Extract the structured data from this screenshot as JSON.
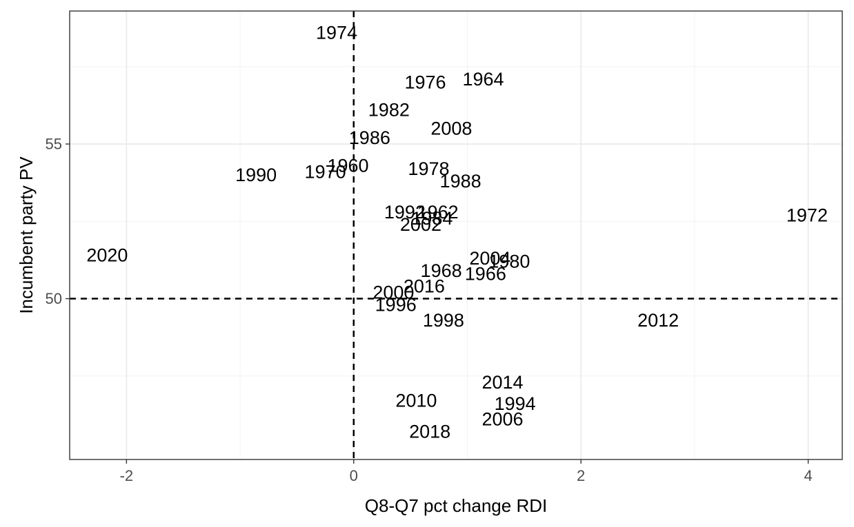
{
  "chart_data": {
    "type": "scatter",
    "xlabel": "Q8-Q7 pct change RDI",
    "ylabel": "Incumbent party PV",
    "xlim": [
      -2.5,
      4.3
    ],
    "ylim": [
      44.8,
      59.3
    ],
    "x_ticks": [
      -2,
      0,
      2,
      4
    ],
    "x_tick_labels": [
      "-2",
      "0",
      "2",
      "4"
    ],
    "y_ticks": [
      50,
      55
    ],
    "y_tick_labels": [
      "50",
      "55"
    ],
    "x_minor_ticks": [
      -1,
      1,
      3
    ],
    "y_minor_ticks": [
      47.5,
      52.5,
      57.5
    ],
    "grid": true,
    "reference_lines": {
      "x": 0,
      "y": 50
    },
    "points": [
      {
        "label": "1974",
        "x": -0.15,
        "y": 58.6
      },
      {
        "label": "1976",
        "x": 0.63,
        "y": 57.0
      },
      {
        "label": "1964",
        "x": 1.14,
        "y": 57.1
      },
      {
        "label": "1982",
        "x": 0.31,
        "y": 56.1
      },
      {
        "label": "2008",
        "x": 0.86,
        "y": 55.5
      },
      {
        "label": "1986",
        "x": 0.14,
        "y": 55.2
      },
      {
        "label": "1960",
        "x": -0.05,
        "y": 54.3
      },
      {
        "label": "1970",
        "x": -0.25,
        "y": 54.1
      },
      {
        "label": "1990",
        "x": -0.86,
        "y": 54.0
      },
      {
        "label": "1978",
        "x": 0.66,
        "y": 54.2
      },
      {
        "label": "1988",
        "x": 0.94,
        "y": 53.8
      },
      {
        "label": "1992",
        "x": 0.45,
        "y": 52.8
      },
      {
        "label": "1962",
        "x": 0.74,
        "y": 52.8
      },
      {
        "label": "1984",
        "x": 0.69,
        "y": 52.6
      },
      {
        "label": "2002",
        "x": 0.59,
        "y": 52.4
      },
      {
        "label": "1972",
        "x": 3.99,
        "y": 52.7
      },
      {
        "label": "2020",
        "x": -2.17,
        "y": 51.4
      },
      {
        "label": "2004",
        "x": 1.2,
        "y": 51.3
      },
      {
        "label": "1980",
        "x": 1.37,
        "y": 51.2
      },
      {
        "label": "1968",
        "x": 0.77,
        "y": 50.9
      },
      {
        "label": "1966",
        "x": 1.16,
        "y": 50.8
      },
      {
        "label": "2016",
        "x": 0.62,
        "y": 50.4
      },
      {
        "label": "2000",
        "x": 0.35,
        "y": 50.2
      },
      {
        "label": "1996",
        "x": 0.37,
        "y": 49.8
      },
      {
        "label": "1998",
        "x": 0.79,
        "y": 49.3
      },
      {
        "label": "2012",
        "x": 2.68,
        "y": 49.3
      },
      {
        "label": "2014",
        "x": 1.31,
        "y": 47.3
      },
      {
        "label": "2010",
        "x": 0.55,
        "y": 46.7
      },
      {
        "label": "1994",
        "x": 1.42,
        "y": 46.6
      },
      {
        "label": "2006",
        "x": 1.31,
        "y": 46.1
      },
      {
        "label": "2018",
        "x": 0.67,
        "y": 45.7
      }
    ]
  }
}
